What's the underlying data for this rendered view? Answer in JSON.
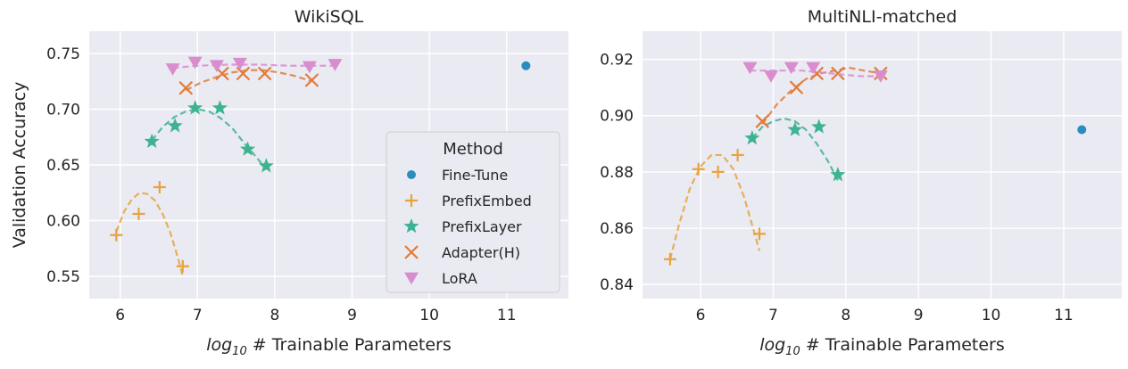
{
  "chart_data": [
    {
      "type": "scatter",
      "title": "WikiSQL",
      "xlabel_var": "log",
      "xlabel_sub": "10",
      "xlabel_rest": " # Trainable Parameters",
      "ylabel": "Validation Accuracy",
      "xlim": [
        5.6,
        11.8
      ],
      "ylim": [
        0.53,
        0.77
      ],
      "xticks": [
        6,
        7,
        8,
        9,
        10,
        11
      ],
      "yticks": [
        0.55,
        0.6,
        0.65,
        0.7,
        0.75
      ],
      "ytick_labels": [
        "0.55",
        "0.60",
        "0.65",
        "0.70",
        "0.75"
      ],
      "grid": true,
      "legend": {
        "title": "Method",
        "placement": "lower-right",
        "entries": [
          "Fine-Tune",
          "PrefixEmbed",
          "PrefixLayer",
          "Adapter(H)",
          "LoRA"
        ]
      },
      "series": [
        {
          "name": "Fine-Tune",
          "marker": "circle",
          "color": "#2b8cbe",
          "x": [
            11.25
          ],
          "y": [
            0.739
          ]
        },
        {
          "name": "PrefixEmbed",
          "marker": "plus",
          "color": "#e8a33d",
          "x": [
            5.95,
            6.24,
            6.51,
            6.81
          ],
          "y": [
            0.587,
            0.606,
            0.63,
            0.559
          ],
          "curve": {
            "x": [
              5.95,
              6.05,
              6.15,
              6.25,
              6.35,
              6.45,
              6.55,
              6.65,
              6.75,
              6.81
            ],
            "y": [
              0.59,
              0.608,
              0.619,
              0.625,
              0.624,
              0.618,
              0.606,
              0.589,
              0.566,
              0.55
            ]
          }
        },
        {
          "name": "PrefixLayer",
          "marker": "star",
          "color": "#3eb393",
          "x": [
            6.41,
            6.71,
            6.97,
            7.29,
            7.65,
            7.89
          ],
          "y": [
            0.671,
            0.685,
            0.701,
            0.701,
            0.664,
            0.649
          ],
          "curve": {
            "x": [
              6.41,
              6.55,
              6.7,
              6.85,
              7.0,
              7.15,
              7.3,
              7.45,
              7.6,
              7.75,
              7.89
            ],
            "y": [
              0.672,
              0.684,
              0.693,
              0.698,
              0.7,
              0.698,
              0.692,
              0.683,
              0.67,
              0.658,
              0.646
            ]
          }
        },
        {
          "name": "Adapter(H)",
          "marker": "x",
          "color": "#e07b39",
          "x": [
            6.85,
            7.32,
            7.59,
            7.87,
            8.48
          ],
          "y": [
            0.719,
            0.732,
            0.732,
            0.732,
            0.726
          ],
          "curve": {
            "x": [
              6.85,
              7.05,
              7.25,
              7.45,
              7.65,
              7.85,
              8.05,
              8.25,
              8.48
            ],
            "y": [
              0.717,
              0.724,
              0.729,
              0.733,
              0.735,
              0.735,
              0.733,
              0.73,
              0.725
            ]
          }
        },
        {
          "name": "LoRA",
          "marker": "triangle-down",
          "color": "#d98cce",
          "x": [
            6.68,
            6.97,
            7.25,
            7.55,
            8.45,
            8.78
          ],
          "y": [
            0.736,
            0.742,
            0.739,
            0.741,
            0.738,
            0.74
          ],
          "curve": {
            "x": [
              6.68,
              7.0,
              7.4,
              7.8,
              8.2,
              8.6,
              8.78
            ],
            "y": [
              0.737,
              0.739,
              0.74,
              0.74,
              0.739,
              0.739,
              0.739
            ]
          }
        }
      ]
    },
    {
      "type": "scatter",
      "title": "MultiNLI-matched",
      "xlabel_var": "log",
      "xlabel_sub": "10",
      "xlabel_rest": " # Trainable Parameters",
      "ylabel": "",
      "xlim": [
        5.2,
        11.8
      ],
      "ylim": [
        0.835,
        0.93
      ],
      "xticks": [
        6,
        7,
        8,
        9,
        10,
        11
      ],
      "yticks": [
        0.84,
        0.86,
        0.88,
        0.9,
        0.92
      ],
      "ytick_labels": [
        "0.84",
        "0.86",
        "0.88",
        "0.90",
        "0.92"
      ],
      "grid": true,
      "series": [
        {
          "name": "Fine-Tune",
          "marker": "circle",
          "color": "#2b8cbe",
          "x": [
            11.25
          ],
          "y": [
            0.895
          ]
        },
        {
          "name": "PrefixEmbed",
          "marker": "plus",
          "color": "#e8a33d",
          "x": [
            5.58,
            5.97,
            6.24,
            6.51,
            6.81
          ],
          "y": [
            0.849,
            0.881,
            0.88,
            0.886,
            0.858
          ],
          "curve": {
            "x": [
              5.58,
              5.7,
              5.85,
              6.0,
              6.15,
              6.3,
              6.45,
              6.6,
              6.7,
              6.81
            ],
            "y": [
              0.849,
              0.861,
              0.874,
              0.882,
              0.886,
              0.886,
              0.881,
              0.871,
              0.862,
              0.852
            ]
          }
        },
        {
          "name": "PrefixLayer",
          "marker": "star",
          "color": "#3eb393",
          "x": [
            6.71,
            7.3,
            7.63,
            7.89
          ],
          "y": [
            0.892,
            0.895,
            0.896,
            0.879
          ],
          "curve": {
            "x": [
              6.71,
              6.85,
              7.0,
              7.15,
              7.3,
              7.45,
              7.6,
              7.75,
              7.89
            ],
            "y": [
              0.892,
              0.896,
              0.898,
              0.899,
              0.898,
              0.895,
              0.89,
              0.884,
              0.877
            ]
          }
        },
        {
          "name": "Adapter(H)",
          "marker": "x",
          "color": "#e07b39",
          "x": [
            6.85,
            7.32,
            7.6,
            7.89,
            8.48
          ],
          "y": [
            0.898,
            0.91,
            0.915,
            0.915,
            0.915
          ],
          "curve": {
            "x": [
              6.85,
              7.05,
              7.25,
              7.45,
              7.65,
              7.85,
              8.05,
              8.25,
              8.48
            ],
            "y": [
              0.897,
              0.904,
              0.909,
              0.913,
              0.915,
              0.916,
              0.917,
              0.916,
              0.915
            ]
          }
        },
        {
          "name": "LoRA",
          "marker": "triangle-down",
          "color": "#d98cce",
          "x": [
            6.68,
            6.97,
            7.25,
            7.55,
            8.48
          ],
          "y": [
            0.917,
            0.914,
            0.917,
            0.917,
            0.914
          ],
          "curve": {
            "x": [
              6.68,
              7.0,
              7.4,
              7.8,
              8.2,
              8.48
            ],
            "y": [
              0.916,
              0.916,
              0.916,
              0.915,
              0.914,
              0.914
            ]
          }
        }
      ]
    }
  ]
}
